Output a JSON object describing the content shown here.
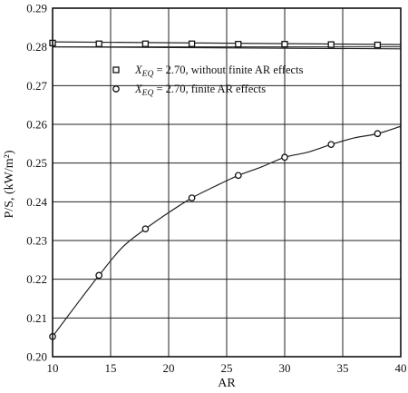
{
  "chart_data": {
    "type": "line",
    "xlabel": "AR",
    "ylabel": "P/S, (kW/m²)",
    "xlim": [
      10,
      40
    ],
    "ylim": [
      0.2,
      0.29
    ],
    "xticks": [
      "10",
      "15",
      "20",
      "25",
      "30",
      "35",
      "40"
    ],
    "yticks": [
      "0.20",
      "0.21",
      "0.22",
      "0.23",
      "0.24",
      "0.25",
      "0.26",
      "0.27",
      "0.28",
      "0.29"
    ],
    "grid": true,
    "legend_position": "upper-middle",
    "series": [
      {
        "name": "X_EQ = 2.70, without finite AR effects",
        "legend_main": "X",
        "legend_sub": "EQ",
        "legend_rest": " = 2.70, without finite AR effects",
        "marker": "square",
        "x": [
          10,
          14,
          18,
          22,
          26,
          30,
          34,
          38
        ],
        "y": [
          0.281,
          0.2808,
          0.2808,
          0.2808,
          0.2807,
          0.2807,
          0.2806,
          0.2805
        ],
        "curve_x": [
          10,
          40
        ],
        "curve_y": [
          0.2813,
          0.2806
        ]
      },
      {
        "name": "X_EQ = 2.70, finite AR effects",
        "legend_main": "X",
        "legend_sub": "EQ",
        "legend_rest": " = 2.70, finite AR effects",
        "marker": "circle",
        "x": [
          10,
          14,
          18,
          22,
          26,
          30,
          34,
          38
        ],
        "y": [
          0.2052,
          0.221,
          0.233,
          0.241,
          0.2468,
          0.2515,
          0.2548,
          0.2576
        ],
        "curve_x": [
          10,
          12,
          14,
          16,
          18,
          20,
          22,
          24,
          26,
          28,
          30,
          32,
          34,
          36,
          38,
          40
        ],
        "curve_y": [
          0.2052,
          0.2132,
          0.221,
          0.2282,
          0.233,
          0.2372,
          0.241,
          0.244,
          0.2468,
          0.249,
          0.2515,
          0.2528,
          0.2548,
          0.2565,
          0.2576,
          0.2595
        ]
      },
      {
        "name": "",
        "marker": "none",
        "curve_x": [
          10,
          40
        ],
        "curve_y": [
          0.28,
          0.2795
        ]
      }
    ]
  }
}
